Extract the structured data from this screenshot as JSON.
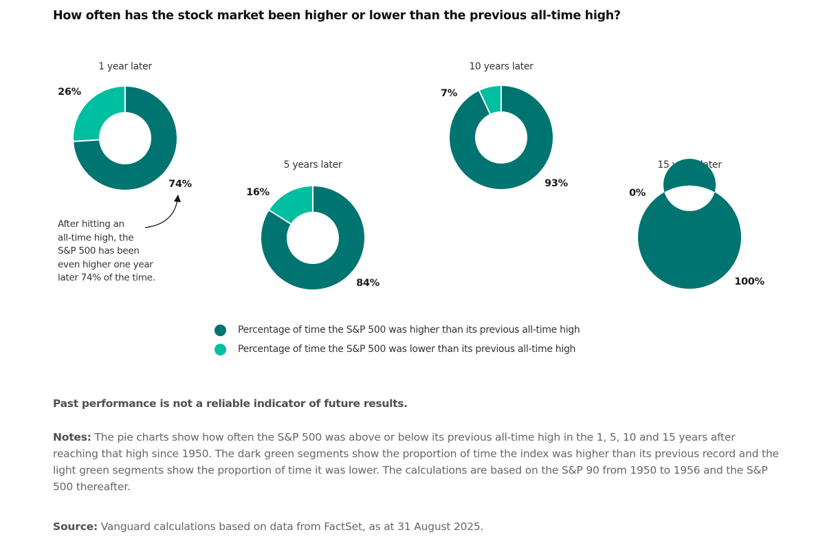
{
  "title": "How often has the stock market been higher or lower than the previous all-time high?",
  "colors": {
    "higher": "#007470",
    "lower": "#00BFA0",
    "separator": "#ffffff"
  },
  "chart_data": {
    "type": "pie",
    "variant": "donut",
    "title": "How often has the stock market been higher or lower than the previous all-time high?",
    "series_names": [
      "Percentage of time the S&P 500 was higher than its previous all-time high",
      "Percentage of time the S&P 500 was lower than its previous all-time high"
    ],
    "charts": [
      {
        "title": "1 year later",
        "higher": 74,
        "lower": 26,
        "higher_label": "74%",
        "lower_label": "26%"
      },
      {
        "title": "5 years later",
        "higher": 84,
        "lower": 16,
        "higher_label": "84%",
        "lower_label": "16%"
      },
      {
        "title": "10 years later",
        "higher": 93,
        "lower": 7,
        "higher_label": "93%",
        "lower_label": "7%"
      },
      {
        "title": "15 years later",
        "higher": 100,
        "lower": 0,
        "higher_label": "100%",
        "lower_label": "0%"
      }
    ],
    "legend_position": "bottom-center",
    "annotation": "After hitting an all-time high, the S&P 500 has been even higher one year later 74% of the time."
  },
  "annotation_lines": [
    "After hitting an",
    "all-time high, the",
    "S&P 500 has been",
    "even higher one year",
    "later 74% of the time."
  ],
  "legend": [
    {
      "label": "Percentage of time the S&P 500 was higher than its previous all-time high",
      "color": "#007470"
    },
    {
      "label": "Percentage of time the S&P 500 was lower than its previous all-time high",
      "color": "#00BFA0"
    }
  ],
  "disclaimer": "Past performance is not a reliable indicator of future results.",
  "notes": {
    "label": "Notes:",
    "text": " The pie charts show how often the S&P 500 was above or below its previous all-time high in the 1, 5, 10 and 15 years after reaching that high since 1950. The dark green segments show the proportion of time the index was higher than its previous record and the light green segments show the proportion of time it was lower. The calculations are based on the S&P 90 from 1950 to 1956 and the S&P 500 thereafter."
  },
  "source": {
    "label": "Source:",
    "text": " Vanguard calculations based on data from FactSet, as at 31 August 2025."
  }
}
